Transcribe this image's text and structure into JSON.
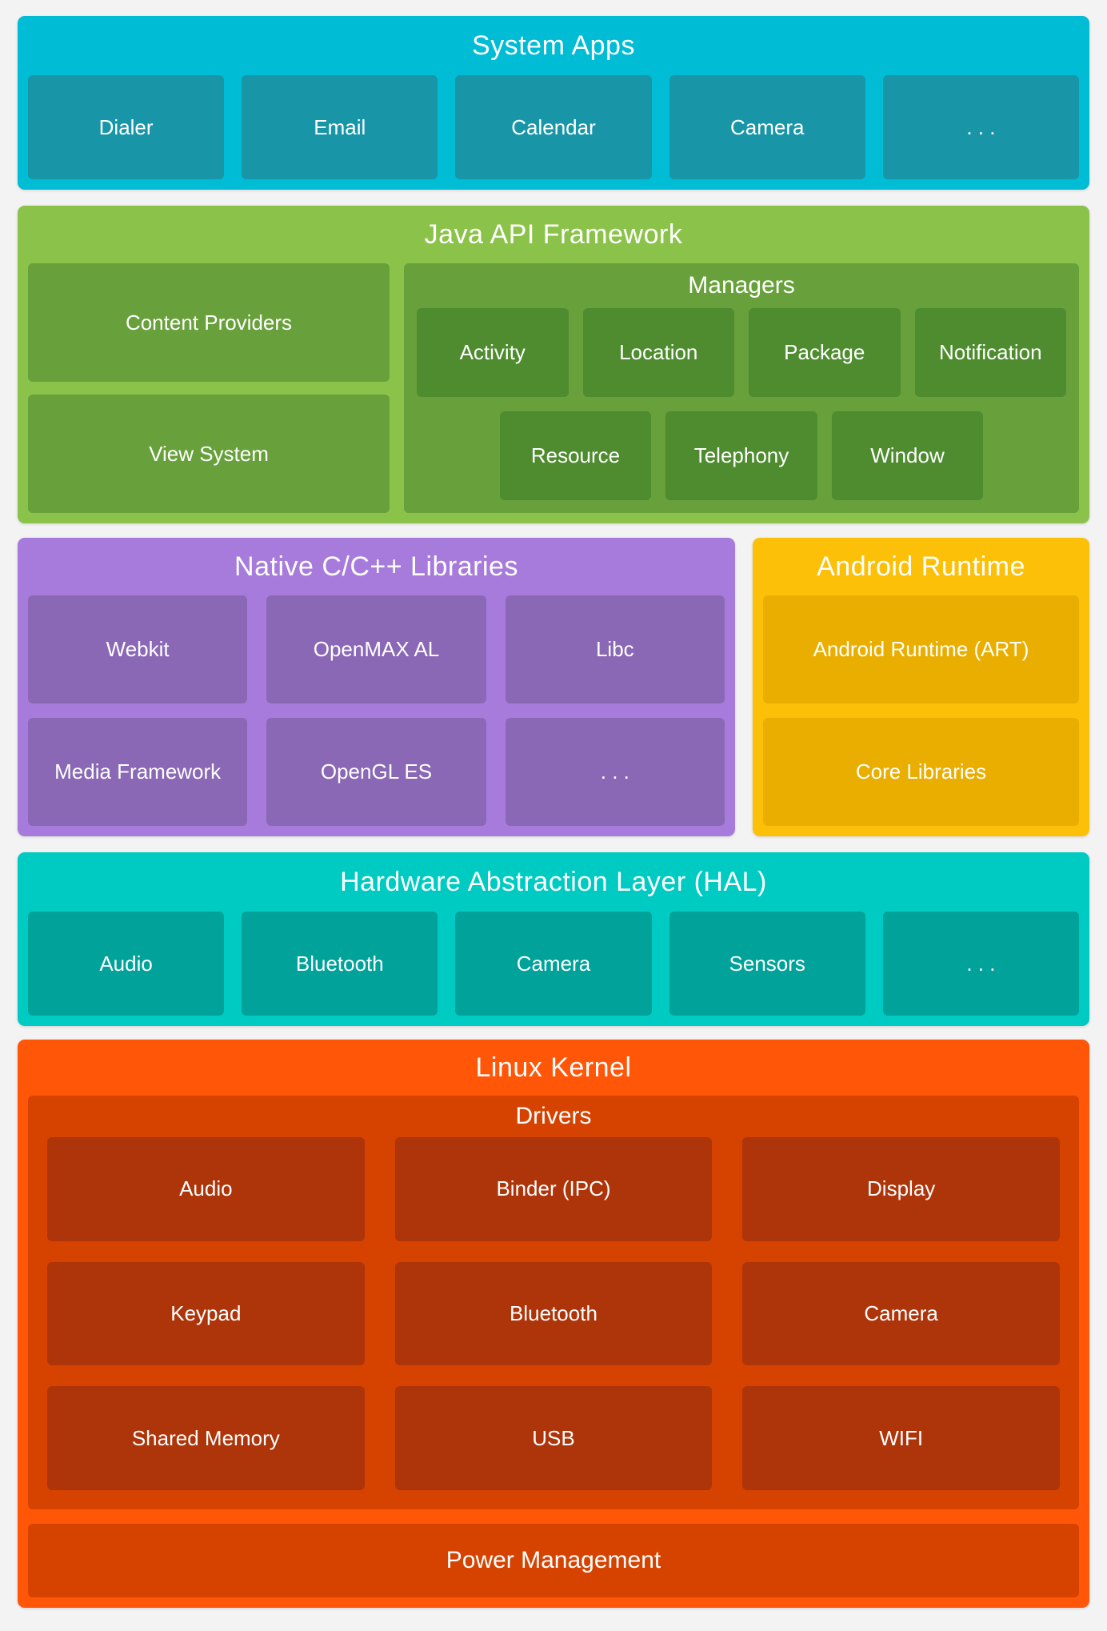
{
  "colors": {
    "page_background": "#f3f3f4",
    "system_apps_bg": "#00bcd4",
    "system_apps_box": "#1896a8",
    "java_bg": "#8bc34a",
    "java_box": "#68a03b",
    "java_subbox": "#4e8c2f",
    "native_libs_bg": "#a77bdb",
    "native_libs_box": "#8a68b5",
    "runtime_bg": "#fdc008",
    "runtime_box": "#e9ae00",
    "hal_bg": "#00cbc2",
    "hal_box": "#00a29a",
    "kernel_bg": "#ff5607",
    "kernel_container": "#d64300",
    "kernel_box": "#ae3409",
    "text": "#ffffff"
  },
  "system_apps": {
    "title": "System Apps",
    "items": [
      "Dialer",
      "Email",
      "Calendar",
      "Camera",
      ". . ."
    ]
  },
  "java_api": {
    "title": "Java API Framework",
    "left_items": [
      "Content Providers",
      "View System"
    ],
    "managers": {
      "title": "Managers",
      "row1": [
        "Activity",
        "Location",
        "Package",
        "Notification"
      ],
      "row2": [
        "Resource",
        "Telephony",
        "Window"
      ]
    }
  },
  "native_libs": {
    "title": "Native C/C++ Libraries",
    "items": [
      "Webkit",
      "OpenMAX AL",
      "Libc",
      "Media Framework",
      "OpenGL ES",
      ". . ."
    ]
  },
  "android_runtime": {
    "title": "Android Runtime",
    "items": [
      "Android Runtime (ART)",
      "Core Libraries"
    ]
  },
  "hal": {
    "title": "Hardware Abstraction Layer (HAL)",
    "items": [
      "Audio",
      "Bluetooth",
      "Camera",
      "Sensors",
      ". . ."
    ]
  },
  "linux_kernel": {
    "title": "Linux Kernel",
    "drivers": {
      "title": "Drivers",
      "items": [
        "Audio",
        "Binder (IPC)",
        "Display",
        "Keypad",
        "Bluetooth",
        "Camera",
        "Shared Memory",
        "USB",
        "WIFI"
      ]
    },
    "power": "Power Management"
  }
}
